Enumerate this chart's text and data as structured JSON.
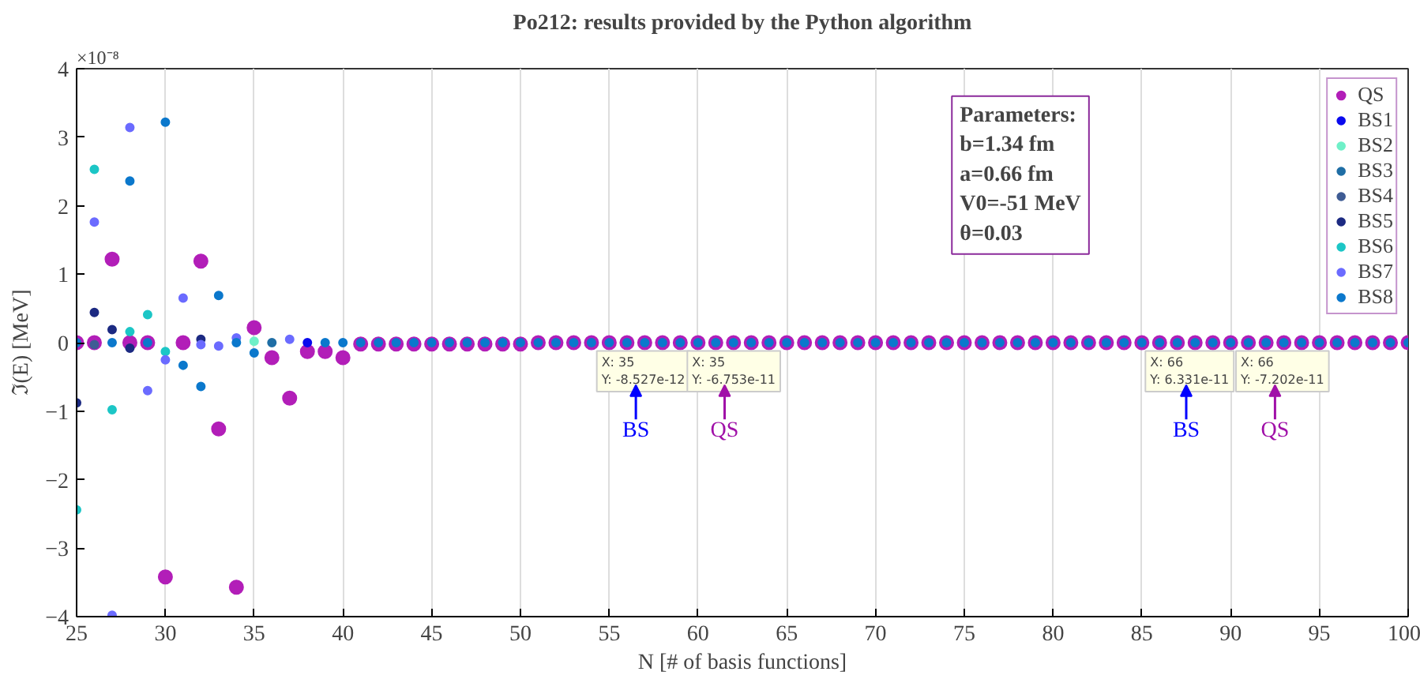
{
  "chart_data": {
    "type": "scatter",
    "title": "Po212: results provided by the Python algorithm",
    "xlabel": "N [# of basis functions]",
    "ylabel": "ℑ(E) [MeV]",
    "x": [
      25,
      26,
      27,
      28,
      29,
      30,
      31,
      32,
      33,
      34,
      35,
      36,
      37,
      38,
      39,
      40,
      41,
      42,
      43,
      44,
      45,
      46,
      47,
      48,
      49,
      50,
      51,
      52,
      53,
      54,
      55,
      56,
      57,
      58,
      59,
      60,
      61,
      62,
      63,
      64,
      65,
      66,
      67,
      68,
      69,
      70,
      71,
      72,
      73,
      74,
      75,
      76,
      77,
      78,
      79,
      80,
      81,
      82,
      83,
      84,
      85,
      86,
      87,
      88,
      89,
      90,
      91,
      92,
      93,
      94,
      95,
      96,
      97,
      98,
      99,
      100
    ],
    "series": [
      {
        "name": "QS",
        "color": "#b21eb8",
        "values": [
          0,
          0,
          1.22,
          0,
          0,
          -3.42,
          0,
          1.19,
          -1.26,
          -3.57,
          0.22,
          -0.22,
          -0.81,
          -0.13,
          -0.13,
          -0.22,
          -0.02,
          -0.02,
          -0.02,
          -0.02,
          -0.02,
          -0.02,
          -0.02,
          -0.02,
          -0.02,
          -0.02,
          0,
          0,
          0,
          0,
          0,
          0,
          0,
          0,
          0,
          0,
          0,
          0,
          0,
          0,
          0,
          0,
          0,
          0,
          0,
          0,
          0,
          0,
          0,
          0,
          0,
          0,
          0,
          0,
          0,
          0,
          0,
          0,
          0,
          0,
          0,
          0,
          0,
          0,
          0,
          0,
          0,
          0,
          0,
          0,
          0,
          0,
          0,
          0,
          0,
          0
        ]
      },
      {
        "name": "BS1",
        "color": "#0a0aee",
        "values": [
          null,
          null,
          null,
          null,
          null,
          null,
          null,
          null,
          null,
          null,
          null,
          null,
          null,
          0,
          null,
          null,
          null,
          null,
          null,
          null,
          null,
          null,
          null,
          null,
          null,
          null,
          null,
          null,
          null,
          null,
          null,
          null,
          null,
          null,
          null,
          null,
          null,
          null,
          null,
          null,
          null,
          null,
          null,
          null,
          null,
          null,
          null,
          null,
          null,
          null,
          null,
          null,
          null,
          null,
          null,
          null,
          null,
          null,
          null,
          null,
          null,
          null,
          null,
          null,
          null,
          null,
          null,
          null,
          null,
          null,
          null,
          null,
          null,
          null,
          null,
          null
        ]
      },
      {
        "name": "BS2",
        "color": "#6ff0c8",
        "values": [
          null,
          null,
          null,
          null,
          null,
          null,
          null,
          null,
          null,
          null,
          0.02,
          null,
          null,
          null,
          null,
          null,
          null,
          null,
          null,
          null,
          null,
          null,
          null,
          null,
          null,
          null,
          null,
          null,
          null,
          null,
          null,
          null,
          null,
          null,
          null,
          null,
          null,
          null,
          null,
          null,
          null,
          null,
          null,
          null,
          null,
          null,
          null,
          null,
          null,
          null,
          null,
          null,
          null,
          null,
          null,
          null,
          null,
          null,
          null,
          null,
          null,
          null,
          null,
          null,
          null,
          null,
          null,
          null,
          null,
          null,
          null,
          null,
          null,
          null,
          null,
          null
        ]
      },
      {
        "name": "BS3",
        "color": "#1f6ea5",
        "values": [
          null,
          null,
          null,
          null,
          null,
          null,
          null,
          null,
          null,
          null,
          null,
          0,
          null,
          null,
          null,
          null,
          null,
          null,
          null,
          null,
          null,
          null,
          null,
          null,
          null,
          null,
          null,
          null,
          null,
          null,
          null,
          null,
          null,
          null,
          null,
          null,
          null,
          null,
          null,
          null,
          null,
          null,
          null,
          null,
          null,
          null,
          null,
          null,
          null,
          null,
          null,
          null,
          null,
          null,
          null,
          null,
          null,
          null,
          null,
          null,
          null,
          null,
          null,
          null,
          null,
          null,
          null,
          null,
          null,
          null,
          null,
          null,
          null,
          null,
          null,
          null
        ]
      },
      {
        "name": "BS4",
        "color": "#3f5c94",
        "values": [
          null,
          -0.03,
          null,
          null,
          null,
          null,
          null,
          null,
          null,
          null,
          null,
          null,
          null,
          null,
          null,
          null,
          null,
          null,
          null,
          null,
          null,
          null,
          null,
          null,
          null,
          null,
          null,
          null,
          null,
          null,
          null,
          null,
          null,
          null,
          null,
          null,
          null,
          null,
          null,
          null,
          null,
          null,
          null,
          null,
          null,
          null,
          null,
          null,
          null,
          null,
          null,
          null,
          null,
          null,
          null,
          null,
          null,
          null,
          null,
          null,
          null,
          null,
          null,
          null,
          null,
          null,
          null,
          null,
          null,
          null,
          null,
          null,
          null,
          null,
          null,
          null
        ]
      },
      {
        "name": "BS5",
        "color": "#1c2a82",
        "values": [
          -0.88,
          0.44,
          0.19,
          -0.08,
          null,
          null,
          null,
          0.05,
          null,
          null,
          null,
          null,
          null,
          null,
          null,
          null,
          null,
          null,
          null,
          null,
          null,
          null,
          null,
          null,
          null,
          null,
          null,
          null,
          null,
          null,
          null,
          null,
          null,
          null,
          null,
          null,
          null,
          null,
          null,
          null,
          null,
          null,
          null,
          null,
          null,
          null,
          null,
          null,
          null,
          null,
          null,
          null,
          null,
          null,
          null,
          null,
          null,
          null,
          null,
          null,
          null,
          null,
          null,
          null,
          null,
          null,
          null,
          null,
          null,
          null,
          null,
          null,
          null,
          null,
          null,
          null
        ]
      },
      {
        "name": "BS6",
        "color": "#1cc6c6",
        "values": [
          -2.44,
          2.53,
          -0.98,
          0.16,
          0.41,
          -0.13,
          null,
          null,
          null,
          null,
          null,
          null,
          null,
          null,
          null,
          null,
          null,
          null,
          null,
          null,
          null,
          null,
          null,
          null,
          null,
          null,
          null,
          null,
          null,
          null,
          null,
          null,
          null,
          null,
          null,
          null,
          null,
          null,
          null,
          null,
          null,
          null,
          null,
          null,
          null,
          null,
          null,
          null,
          null,
          null,
          null,
          null,
          null,
          null,
          null,
          null,
          null,
          null,
          null,
          null,
          null,
          null,
          null,
          null,
          null,
          null,
          null,
          null,
          null,
          null,
          null,
          null,
          null,
          null,
          null,
          null
        ]
      },
      {
        "name": "BS7",
        "color": "#6b6bff",
        "values": [
          null,
          1.76,
          -3.98,
          3.14,
          -0.7,
          -0.25,
          0.65,
          -0.03,
          -0.05,
          0.07,
          null,
          null,
          0.05,
          null,
          null,
          null,
          null,
          null,
          null,
          null,
          null,
          null,
          null,
          null,
          null,
          null,
          null,
          null,
          null,
          null,
          null,
          null,
          null,
          null,
          null,
          null,
          null,
          null,
          null,
          null,
          null,
          null,
          null,
          null,
          null,
          null,
          null,
          null,
          null,
          null,
          null,
          null,
          null,
          null,
          null,
          null,
          null,
          null,
          null,
          null,
          null,
          null,
          null,
          null,
          null,
          null,
          null,
          null,
          null,
          null,
          null,
          null,
          null,
          null,
          null,
          null
        ]
      },
      {
        "name": "BS8",
        "color": "#0b78cc",
        "values": [
          0,
          null,
          0,
          2.36,
          0,
          3.22,
          -0.33,
          -0.64,
          0.69,
          0,
          -0.15,
          null,
          null,
          null,
          0,
          0,
          0,
          0,
          0,
          0,
          0,
          0,
          0,
          0,
          0,
          0,
          0,
          0,
          0,
          0,
          0,
          0,
          0,
          0,
          0,
          0,
          0,
          0,
          0,
          0,
          0,
          0,
          0,
          0,
          0,
          0,
          0,
          0,
          0,
          0,
          0,
          0,
          0,
          0,
          0,
          0,
          0,
          0,
          0,
          0,
          0,
          0,
          0,
          0,
          0,
          0,
          0,
          0,
          0,
          0,
          0,
          0,
          0,
          0,
          0,
          0
        ]
      }
    ],
    "xlim": [
      25,
      100
    ],
    "xticks": [
      25,
      30,
      35,
      40,
      45,
      50,
      55,
      60,
      65,
      70,
      75,
      80,
      85,
      90,
      95,
      100
    ],
    "ylim": [
      -4,
      4
    ],
    "yticks": [
      -4,
      -3,
      -2,
      -1,
      0,
      1,
      2,
      3,
      4
    ],
    "grid": "x",
    "legend": "top right",
    "marker": "circle",
    "annotations": [
      "×10⁻⁸",
      "Parameters:\nb=1.34 fm\na=0.66 fm\nV0=-51 MeV\nθ=0.03",
      "X: 35\nY: -8.527e-12",
      "X: 35\nY: -6.753e-11",
      "X: 66\nY: 6.331e-11",
      "X: 66\nY: -7.202e-11",
      "BS",
      "QS",
      "BS",
      "QS"
    ]
  }
}
